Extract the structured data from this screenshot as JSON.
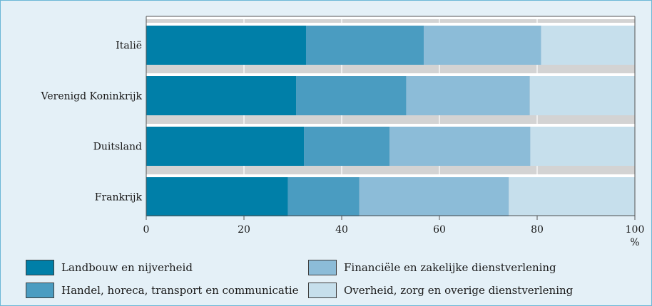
{
  "chart_data": {
    "type": "bar",
    "orientation": "horizontal",
    "stacked": true,
    "categories": [
      "Italië",
      "Verenigd Koninkrijk",
      "Duitsland",
      "Frankrijk"
    ],
    "series": [
      {
        "name": "Landbouw en nijverheid",
        "color": "#007fa8",
        "values": [
          32.7,
          30.7,
          32.3,
          29.0
        ]
      },
      {
        "name": "Handel, horeca, transport en communicatie",
        "color": "#4a9cc1",
        "values": [
          24.1,
          22.5,
          17.5,
          14.6
        ]
      },
      {
        "name": "Financiële en zakelijke dienstverlening",
        "color": "#8cbcd8",
        "values": [
          24.0,
          25.3,
          28.8,
          30.6
        ]
      },
      {
        "name": "Overheid, zorg en overige dienstverlening",
        "color": "#c6dfec",
        "values": [
          19.2,
          21.5,
          21.4,
          25.8
        ]
      }
    ],
    "xlim": [
      0,
      100
    ],
    "xticks": [
      0,
      20,
      40,
      60,
      80,
      100
    ],
    "xunit": "%",
    "grid": true,
    "legend_position": "bottom"
  }
}
